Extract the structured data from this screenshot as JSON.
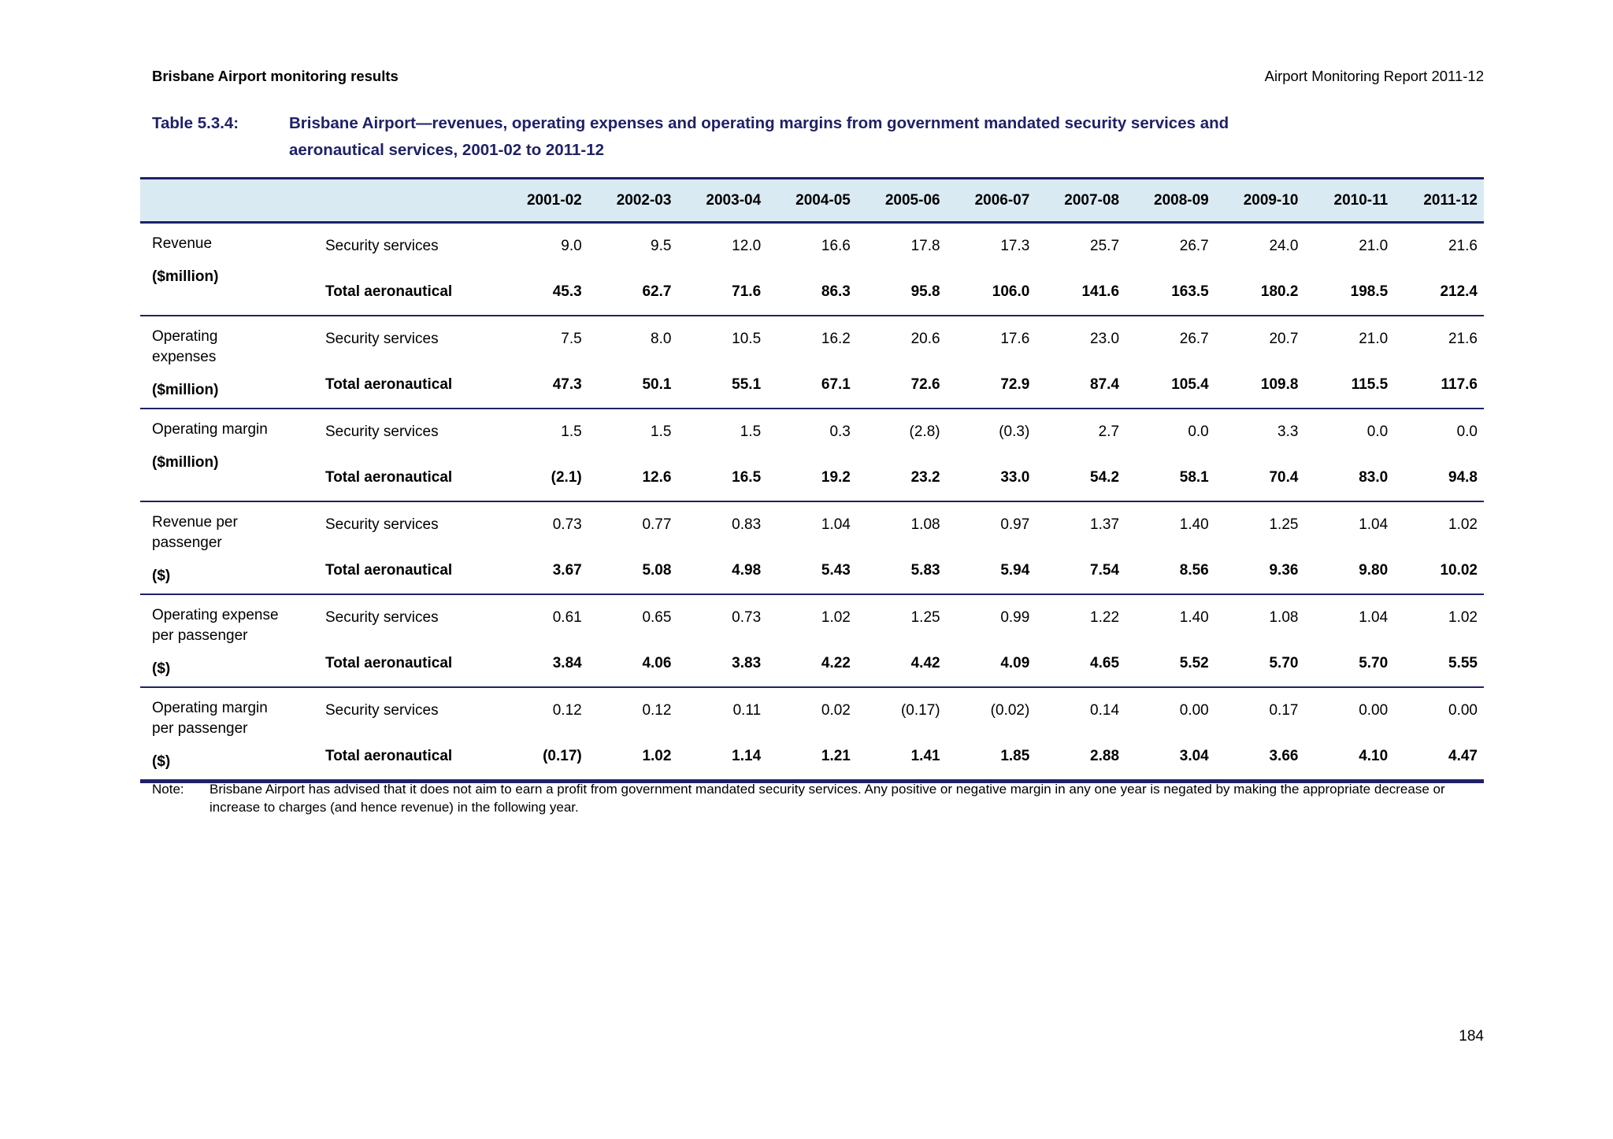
{
  "page": {
    "header_left": "Brisbane Airport monitoring results",
    "header_right": "Airport Monitoring Report 2011-12",
    "page_number": "184"
  },
  "table": {
    "label": "Table 5.3.4:",
    "title_lines": [
      "Brisbane Airport—revenues, operating expenses and operating margins from government mandated security services and",
      "aeronautical services, 2001-02 to 2011-12"
    ],
    "columns": [
      "2001-02",
      "2002-03",
      "2003-04",
      "2004-05",
      "2005-06",
      "2006-07",
      "2007-08",
      "2008-09",
      "2009-10",
      "2010-11",
      "2011-12"
    ],
    "groups": [
      {
        "label_lines": [
          "Revenue"
        ],
        "unit": "($million)",
        "rows": [
          {
            "name": "Security services",
            "bold": false,
            "values": [
              "9.0",
              "9.5",
              "12.0",
              "16.6",
              "17.8",
              "17.3",
              "25.7",
              "26.7",
              "24.0",
              "21.0",
              "21.6"
            ]
          },
          {
            "name": "Total aeronautical",
            "bold": true,
            "values": [
              "45.3",
              "62.7",
              "71.6",
              "86.3",
              "95.8",
              "106.0",
              "141.6",
              "163.5",
              "180.2",
              "198.5",
              "212.4"
            ]
          }
        ]
      },
      {
        "label_lines": [
          "Operating",
          "expenses"
        ],
        "unit": "($million)",
        "rows": [
          {
            "name": "Security services",
            "bold": false,
            "values": [
              "7.5",
              "8.0",
              "10.5",
              "16.2",
              "20.6",
              "17.6",
              "23.0",
              "26.7",
              "20.7",
              "21.0",
              "21.6"
            ]
          },
          {
            "name": "Total aeronautical",
            "bold": true,
            "values": [
              "47.3",
              "50.1",
              "55.1",
              "67.1",
              "72.6",
              "72.9",
              "87.4",
              "105.4",
              "109.8",
              "115.5",
              "117.6"
            ]
          }
        ]
      },
      {
        "label_lines": [
          "Operating margin"
        ],
        "unit": "($million)",
        "rows": [
          {
            "name": "Security services",
            "bold": false,
            "values": [
              "1.5",
              "1.5",
              "1.5",
              "0.3",
              "(2.8)",
              "(0.3)",
              "2.7",
              "0.0",
              "3.3",
              "0.0",
              "0.0"
            ]
          },
          {
            "name": "Total aeronautical",
            "bold": true,
            "values": [
              "(2.1)",
              "12.6",
              "16.5",
              "19.2",
              "23.2",
              "33.0",
              "54.2",
              "58.1",
              "70.4",
              "83.0",
              "94.8"
            ]
          }
        ]
      },
      {
        "label_lines": [
          "Revenue per",
          "passenger"
        ],
        "unit": "($)",
        "rows": [
          {
            "name": "Security services",
            "bold": false,
            "values": [
              "0.73",
              "0.77",
              "0.83",
              "1.04",
              "1.08",
              "0.97",
              "1.37",
              "1.40",
              "1.25",
              "1.04",
              "1.02"
            ]
          },
          {
            "name": "Total aeronautical",
            "bold": true,
            "values": [
              "3.67",
              "5.08",
              "4.98",
              "5.43",
              "5.83",
              "5.94",
              "7.54",
              "8.56",
              "9.36",
              "9.80",
              "10.02"
            ]
          }
        ]
      },
      {
        "label_lines": [
          "Operating expense",
          "per passenger"
        ],
        "unit": "($)",
        "rows": [
          {
            "name": "Security services",
            "bold": false,
            "values": [
              "0.61",
              "0.65",
              "0.73",
              "1.02",
              "1.25",
              "0.99",
              "1.22",
              "1.40",
              "1.08",
              "1.04",
              "1.02"
            ]
          },
          {
            "name": "Total aeronautical",
            "bold": true,
            "values": [
              "3.84",
              "4.06",
              "3.83",
              "4.22",
              "4.42",
              "4.09",
              "4.65",
              "5.52",
              "5.70",
              "5.70",
              "5.55"
            ]
          }
        ]
      },
      {
        "label_lines": [
          "Operating margin",
          "per passenger"
        ],
        "unit": "($)",
        "rows": [
          {
            "name": "Security services",
            "bold": false,
            "values": [
              "0.12",
              "0.12",
              "0.11",
              "0.02",
              "(0.17)",
              "(0.02)",
              "0.14",
              "0.00",
              "0.17",
              "0.00",
              "0.00"
            ]
          },
          {
            "name": "Total aeronautical",
            "bold": true,
            "values": [
              "(0.17)",
              "1.02",
              "1.14",
              "1.21",
              "1.41",
              "1.85",
              "2.88",
              "3.04",
              "3.66",
              "4.10",
              "4.47"
            ]
          }
        ]
      }
    ],
    "note_label": "Note:",
    "note": "Brisbane Airport has advised that it does not aim to earn a profit from government mandated security services. Any positive or negative margin in any one year is negated by making the appropriate decrease or increase to charges (and hence revenue) in the following year."
  },
  "colors": {
    "navy": "#1f2168",
    "band_blue": "#daeaf3",
    "text": "#000000"
  }
}
